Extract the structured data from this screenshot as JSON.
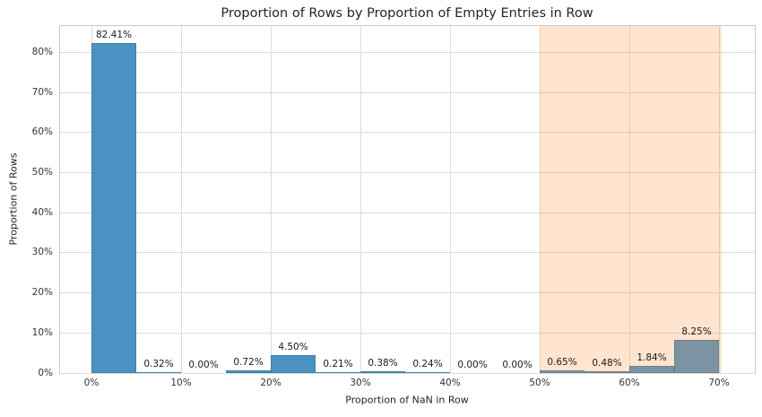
{
  "chart_data": {
    "type": "bar",
    "title": "Proportion of Rows by Proportion of Empty Entries in Row",
    "xlabel": "Proportion of NaN in Row",
    "ylabel": "Proportion of Rows",
    "grid": true,
    "legend": "none",
    "xlim_percent": [
      -3.5,
      74
    ],
    "ylim_percent": [
      0,
      86.6
    ],
    "bin_width_percent": 5,
    "x_ticks": [
      {
        "value": 0,
        "label": "0%"
      },
      {
        "value": 10,
        "label": "10%"
      },
      {
        "value": 20,
        "label": "20%"
      },
      {
        "value": 30,
        "label": "30%"
      },
      {
        "value": 40,
        "label": "40%"
      },
      {
        "value": 50,
        "label": "50%"
      },
      {
        "value": 60,
        "label": "60%"
      },
      {
        "value": 70,
        "label": "70%"
      }
    ],
    "y_ticks": [
      {
        "value": 0,
        "label": "0%"
      },
      {
        "value": 10,
        "label": "10%"
      },
      {
        "value": 20,
        "label": "20%"
      },
      {
        "value": 30,
        "label": "30%"
      },
      {
        "value": 40,
        "label": "40%"
      },
      {
        "value": 50,
        "label": "50%"
      },
      {
        "value": 60,
        "label": "60%"
      },
      {
        "value": 70,
        "label": "70%"
      },
      {
        "value": 80,
        "label": "80%"
      }
    ],
    "bins": [
      {
        "start": 0,
        "end": 5,
        "value": 82.41,
        "label": "82.41%",
        "group": "default"
      },
      {
        "start": 5,
        "end": 10,
        "value": 0.32,
        "label": "0.32%",
        "group": "default"
      },
      {
        "start": 10,
        "end": 15,
        "value": 0.0,
        "label": "0.00%",
        "group": "default"
      },
      {
        "start": 15,
        "end": 20,
        "value": 0.72,
        "label": "0.72%",
        "group": "default"
      },
      {
        "start": 20,
        "end": 25,
        "value": 4.5,
        "label": "4.50%",
        "group": "default"
      },
      {
        "start": 25,
        "end": 30,
        "value": 0.21,
        "label": "0.21%",
        "group": "default"
      },
      {
        "start": 30,
        "end": 35,
        "value": 0.38,
        "label": "0.38%",
        "group": "default"
      },
      {
        "start": 35,
        "end": 40,
        "value": 0.24,
        "label": "0.24%",
        "group": "default"
      },
      {
        "start": 40,
        "end": 45,
        "value": 0.0,
        "label": "0.00%",
        "group": "default"
      },
      {
        "start": 45,
        "end": 50,
        "value": 0.0,
        "label": "0.00%",
        "group": "default"
      },
      {
        "start": 50,
        "end": 55,
        "value": 0.65,
        "label": "0.65%",
        "group": "highlight"
      },
      {
        "start": 55,
        "end": 60,
        "value": 0.48,
        "label": "0.48%",
        "group": "highlight"
      },
      {
        "start": 60,
        "end": 65,
        "value": 1.84,
        "label": "1.84%",
        "group": "highlight"
      },
      {
        "start": 65,
        "end": 70,
        "value": 8.25,
        "label": "8.25%",
        "group": "highlight"
      }
    ],
    "highlight_region": {
      "x_start_percent": 50,
      "x_end_percent": 70.3,
      "fill": "rgba(255,127,14,0.2)"
    },
    "colors": {
      "bar_default": "#4b92c3",
      "bar_highlight": "#7b93a2",
      "grid": "#dcdcdc",
      "spine": "#c9c9c9",
      "text": "#262626"
    }
  }
}
